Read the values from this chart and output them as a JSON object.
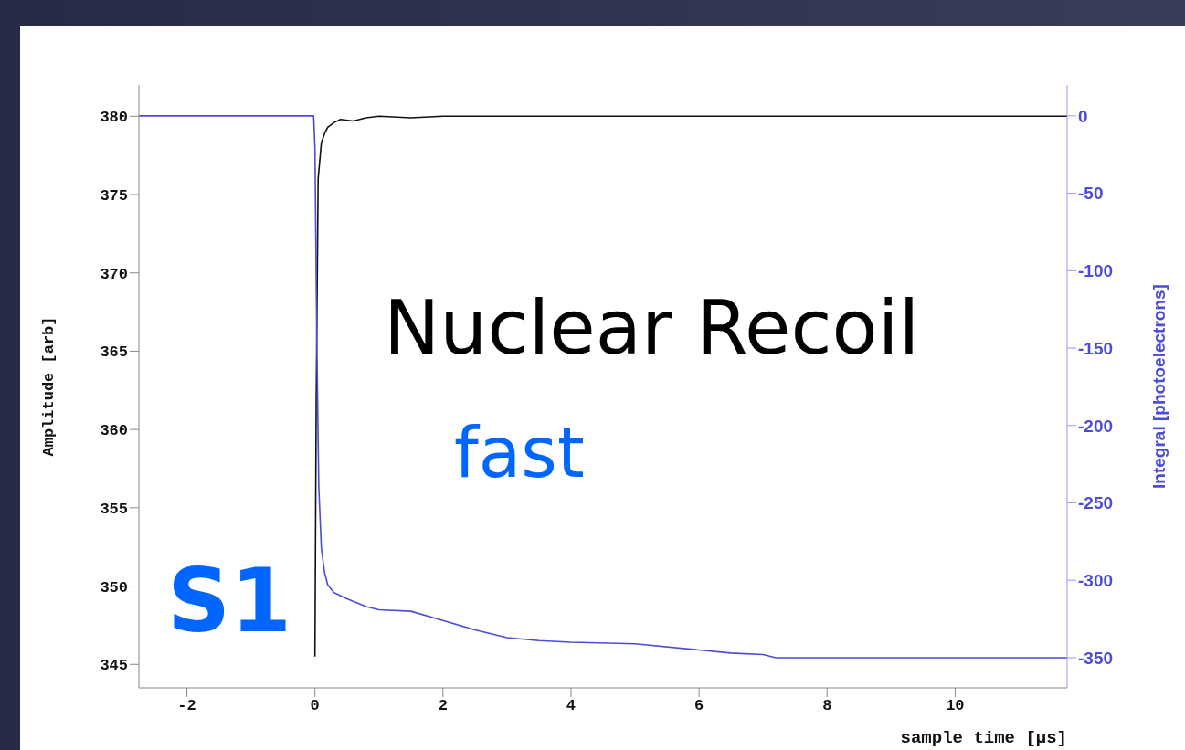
{
  "chart_data": {
    "type": "line",
    "xlabel": "sample time [µs]",
    "ylabel": "Amplitude [arb]",
    "y2label": "Integral [photoelectrons]",
    "xlim": [
      -2.75,
      11.75
    ],
    "xticks": [
      -2,
      0,
      2,
      4,
      6,
      8,
      10
    ],
    "ylim": [
      343.5,
      382
    ],
    "yticks": [
      345,
      350,
      355,
      360,
      365,
      370,
      375,
      380
    ],
    "y2lim": [
      -369.5,
      20
    ],
    "y2ticks": [
      -350,
      -300,
      -250,
      -200,
      -150,
      -100,
      -50,
      0
    ],
    "marker": "none",
    "line_style": "solid",
    "series": [
      {
        "color": "#111111",
        "x": [
          0,
          0.02,
          0.05,
          0.1,
          0.15,
          0.2,
          0.3,
          0.4,
          0.6,
          0.8,
          1.0,
          1.5,
          2,
          3,
          4,
          5,
          6,
          7,
          8,
          9,
          10,
          11,
          11.75
        ],
        "values": [
          345.5,
          362,
          376,
          378.3,
          378.9,
          379.3,
          379.6,
          379.8,
          379.7,
          379.9,
          380,
          379.9,
          380,
          380,
          380,
          380,
          380,
          380,
          380,
          380,
          380,
          380,
          380
        ]
      },
      {
        "color": "#4b4bdc",
        "axis": "y2",
        "x": [
          -2.75,
          -0.02,
          0,
          0.03,
          0.06,
          0.1,
          0.15,
          0.2,
          0.3,
          0.5,
          0.8,
          1.0,
          1.5,
          2,
          2.5,
          3,
          3.5,
          4,
          5,
          6,
          6.5,
          7,
          7.2,
          8,
          9,
          10,
          11,
          11.75
        ],
        "values": [
          0,
          0,
          -20,
          -150,
          -240,
          -279,
          -295,
          -303,
          -308,
          -312,
          -317,
          -319,
          -320,
          -326,
          -332,
          -337,
          -339,
          -340,
          -341,
          -345,
          -347,
          -348,
          -350,
          -350,
          -350,
          -350,
          -350,
          -350
        ]
      }
    ],
    "annotations": [
      "Nuclear Recoil",
      "fast",
      "S1"
    ]
  }
}
